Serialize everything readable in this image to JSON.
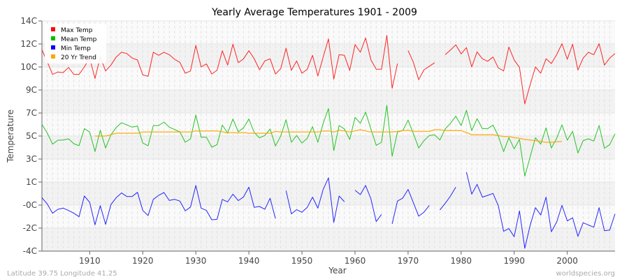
{
  "chart_data": {
    "type": "line",
    "title": "Yearly Average Temperatures 1901 - 2009",
    "xlabel": "Year",
    "ylabel": "Temperature",
    "xlim": [
      1901,
      2009
    ],
    "ylim": [
      -4,
      14
    ],
    "x_ticks": [
      1910,
      1920,
      1930,
      1940,
      1950,
      1960,
      1970,
      1980,
      1990,
      2000
    ],
    "y_ticks": [
      {
        "value": 14,
        "label": "14C"
      },
      {
        "value": 12.2,
        "label": "12C"
      },
      {
        "value": 10.4,
        "label": "10C"
      },
      {
        "value": 8.6,
        "label": "9C"
      },
      {
        "value": 6.8,
        "label": "7C"
      },
      {
        "value": 5,
        "label": "5C"
      },
      {
        "value": 3.2,
        "label": "3C"
      },
      {
        "value": 1.4,
        "label": "1C"
      },
      {
        "value": -0.4,
        "label": "-0C"
      },
      {
        "value": -2.2,
        "label": "-2C"
      },
      {
        "value": -4,
        "label": "-4C"
      }
    ],
    "grid": true,
    "legend_position": "top-left",
    "x_start": 1901,
    "series": [
      {
        "name": "Max Temp",
        "color": "#ff0000",
        "values": [
          11.73,
          10.8,
          9.82,
          10.0,
          9.96,
          10.36,
          9.82,
          9.82,
          10.4,
          11.1,
          9.5,
          11.18,
          10.09,
          10.55,
          11.18,
          11.55,
          11.45,
          11.09,
          10.95,
          9.78,
          9.67,
          11.55,
          11.31,
          11.55,
          11.36,
          11.0,
          10.76,
          9.91,
          10.09,
          12.09,
          10.4,
          10.64,
          9.85,
          10.15,
          11.67,
          10.55,
          12.18,
          10.73,
          11.04,
          11.67,
          11.05,
          10.18,
          10.87,
          11.04,
          9.85,
          10.27,
          11.87,
          10.13,
          10.87,
          9.91,
          10.22,
          11.31,
          9.69,
          11.18,
          12.6,
          9.45,
          11.36,
          11.31,
          10.13,
          12.15,
          11.55,
          12.67,
          10.96,
          10.22,
          10.22,
          12.87,
          8.73,
          10.67,
          null,
          11.69,
          10.76,
          9.4,
          10.18,
          10.45,
          10.73,
          null,
          11.36,
          11.73,
          12.13,
          11.42,
          11.91,
          10.4,
          11.58,
          11.04,
          10.85,
          11.18,
          10.33,
          10.09,
          11.96,
          10.95,
          10.36,
          7.51,
          9.0,
          10.4,
          9.91,
          11.04,
          10.67,
          11.36,
          12.22,
          11.0,
          12.18,
          10.16,
          11.09,
          11.55,
          11.36,
          12.22,
          10.55,
          11.09,
          11.45
        ]
      },
      {
        "name": "Mean Temp",
        "color": "#00bb00",
        "values": [
          5.91,
          5.24,
          4.36,
          4.67,
          4.69,
          4.78,
          4.4,
          4.25,
          5.58,
          5.31,
          3.78,
          5.45,
          4.06,
          5.09,
          5.67,
          6.04,
          5.87,
          5.69,
          5.78,
          4.45,
          4.24,
          5.82,
          5.82,
          6.09,
          5.69,
          5.51,
          5.33,
          4.51,
          4.78,
          6.64,
          4.91,
          4.91,
          4.13,
          4.33,
          5.85,
          5.24,
          6.33,
          5.33,
          5.64,
          6.33,
          5.27,
          4.86,
          5.04,
          5.55,
          4.22,
          5.0,
          6.27,
          4.51,
          5.04,
          4.45,
          4.82,
          5.73,
          4.51,
          6.0,
          7.15,
          3.86,
          5.82,
          5.55,
          4.73,
          6.45,
          6.0,
          6.87,
          5.55,
          4.27,
          4.51,
          7.4,
          3.42,
          5.31,
          5.42,
          6.24,
          5.18,
          4.06,
          4.64,
          5.04,
          5.09,
          4.69,
          5.55,
          6.0,
          6.55,
          5.82,
          7.0,
          5.42,
          6.36,
          5.58,
          5.58,
          5.85,
          5.0,
          3.78,
          4.87,
          4.0,
          4.73,
          1.86,
          3.36,
          4.87,
          4.36,
          5.64,
          4.06,
          4.82,
          5.87,
          4.67,
          5.36,
          3.67,
          4.64,
          4.78,
          4.6,
          5.82,
          4.04,
          4.33,
          5.18
        ]
      },
      {
        "name": "Min Temp",
        "color": "#0000ff",
        "values": [
          0.18,
          -0.31,
          -1.04,
          -0.73,
          -0.64,
          -0.82,
          -1.04,
          -1.31,
          0.31,
          -0.18,
          -1.95,
          -0.45,
          -1.91,
          -0.36,
          0.18,
          0.55,
          0.27,
          0.27,
          0.6,
          -0.82,
          -1.22,
          0.05,
          0.36,
          0.58,
          -0.04,
          0.05,
          -0.09,
          -0.85,
          -0.55,
          1.13,
          -0.64,
          -0.82,
          -1.55,
          -1.51,
          0.04,
          -0.15,
          0.45,
          -0.05,
          0.24,
          1.0,
          -0.58,
          -0.51,
          -0.73,
          0.13,
          -1.45,
          null,
          0.73,
          -1.09,
          -0.76,
          -0.96,
          -0.58,
          0.22,
          -0.64,
          0.82,
          1.73,
          -1.76,
          0.31,
          -0.13,
          null,
          0.76,
          0.42,
          1.13,
          0.09,
          -1.69,
          -1.13,
          null,
          -1.87,
          -0.09,
          0.15,
          0.82,
          -0.22,
          -1.27,
          -0.95,
          -0.42,
          null,
          -0.78,
          -0.27,
          0.31,
          1.0,
          null,
          2.18,
          0.45,
          1.22,
          0.22,
          0.36,
          0.51,
          -0.45,
          -2.45,
          -2.24,
          -2.87,
          -0.85,
          -3.78,
          -2.0,
          -0.6,
          -1.18,
          0.22,
          -2.49,
          -1.73,
          -0.42,
          -1.64,
          -1.4,
          -2.85,
          -1.78,
          -1.96,
          -2.13,
          -0.6,
          -2.4,
          -2.36,
          -1.09
        ]
      },
      {
        "name": "20 Yr Trend",
        "color": "#ffa500",
        "values": [
          null,
          null,
          null,
          null,
          null,
          null,
          null,
          null,
          null,
          null,
          5.0,
          5.0,
          5.0,
          5.1,
          5.22,
          5.22,
          5.22,
          5.22,
          5.22,
          5.31,
          5.31,
          5.31,
          5.31,
          5.31,
          5.31,
          5.31,
          5.31,
          5.31,
          5.31,
          5.4,
          5.4,
          5.4,
          5.4,
          5.4,
          5.33,
          5.24,
          5.27,
          5.24,
          5.27,
          5.22,
          5.22,
          5.22,
          5.22,
          5.22,
          5.36,
          5.31,
          5.31,
          5.31,
          5.31,
          5.31,
          5.31,
          5.31,
          5.31,
          5.4,
          5.4,
          5.31,
          5.45,
          5.4,
          5.31,
          5.4,
          5.49,
          5.4,
          5.31,
          5.31,
          5.31,
          5.31,
          5.31,
          5.36,
          5.42,
          5.45,
          5.36,
          5.36,
          5.36,
          5.36,
          5.49,
          5.49,
          5.42,
          5.42,
          5.42,
          5.42,
          5.27,
          5.09,
          5.09,
          5.09,
          5.09,
          5.09,
          5.04,
          4.96,
          4.96,
          4.87,
          4.82,
          4.73,
          4.69,
          4.64,
          4.58,
          4.51,
          4.51,
          4.55,
          4.58,
          null,
          null,
          null,
          null,
          null,
          null,
          null,
          null,
          null,
          null
        ]
      }
    ]
  },
  "footer": {
    "location": "Latitude 39.75 Longitude 41.25",
    "source": "worldspecies.org"
  }
}
